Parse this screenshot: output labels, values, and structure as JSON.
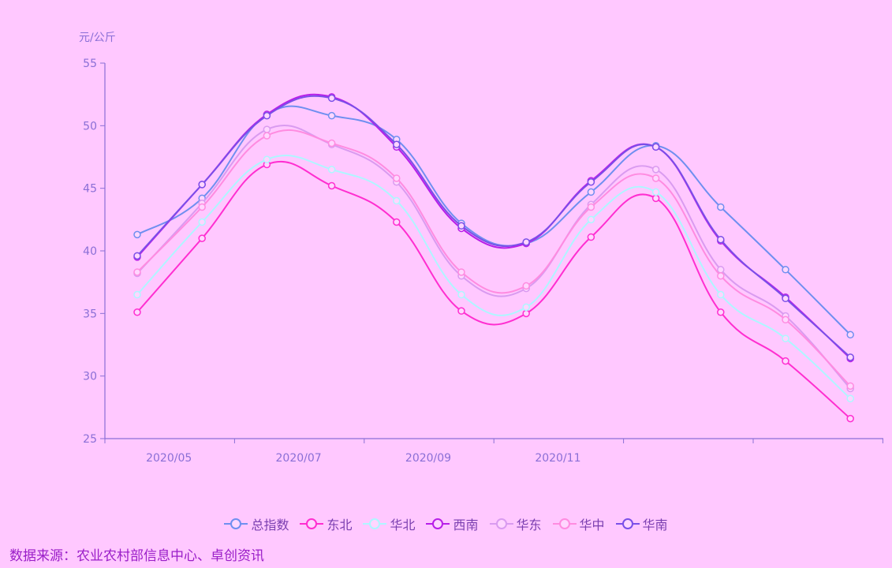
{
  "source_text": "数据来源：农业农村部信息中心、卓创资讯",
  "chart_data": {
    "type": "line",
    "ylabel": "元/公斤",
    "ylim": [
      25,
      55
    ],
    "yticks": [
      25,
      30,
      35,
      40,
      45,
      50,
      55
    ],
    "x_tick_labels": [
      "2020/05",
      "2020/07",
      "2020/09",
      "2020/11"
    ],
    "x": [
      "2020/05",
      "2020/06",
      "2020/07",
      "2020/08",
      "2020/09",
      "2020/10",
      "2020/11",
      "2020/12",
      "2021/01",
      "2021/02",
      "2021/03",
      "2021/04"
    ],
    "legend_position": "bottom",
    "grid": false,
    "series": [
      {
        "name": "总指数",
        "color": "#6f8ff0",
        "values": [
          41.3,
          44.2,
          50.9,
          50.8,
          48.9,
          42.2,
          40.6,
          44.7,
          48.4,
          43.5,
          38.5,
          33.3
        ]
      },
      {
        "name": "东北",
        "color": "#ff2ed0",
        "values": [
          35.1,
          41.0,
          46.9,
          45.2,
          42.3,
          35.2,
          35.0,
          41.1,
          44.2,
          35.1,
          31.2,
          26.6
        ]
      },
      {
        "name": "华北",
        "color": "#aef6ff",
        "values": [
          36.5,
          42.3,
          47.3,
          46.5,
          44.0,
          36.5,
          35.5,
          42.5,
          44.7,
          36.5,
          33.0,
          28.2
        ]
      },
      {
        "name": "西南",
        "color": "#b81ee8",
        "values": [
          39.5,
          45.3,
          50.9,
          52.3,
          48.3,
          41.8,
          40.6,
          45.6,
          48.3,
          40.8,
          36.3,
          31.4
        ]
      },
      {
        "name": "华东",
        "color": "#d99bf0",
        "values": [
          38.2,
          43.8,
          49.7,
          48.5,
          45.5,
          38.0,
          37.0,
          43.7,
          46.5,
          38.5,
          34.8,
          29.0
        ]
      },
      {
        "name": "华中",
        "color": "#ff8be0",
        "values": [
          38.3,
          43.5,
          49.2,
          48.6,
          45.8,
          38.3,
          37.2,
          43.5,
          45.8,
          38.0,
          34.5,
          29.2
        ]
      },
      {
        "name": "华南",
        "color": "#7a4fe8",
        "values": [
          39.6,
          45.3,
          50.8,
          52.2,
          48.5,
          42.0,
          40.7,
          45.5,
          48.3,
          40.9,
          36.2,
          31.5
        ]
      }
    ]
  }
}
